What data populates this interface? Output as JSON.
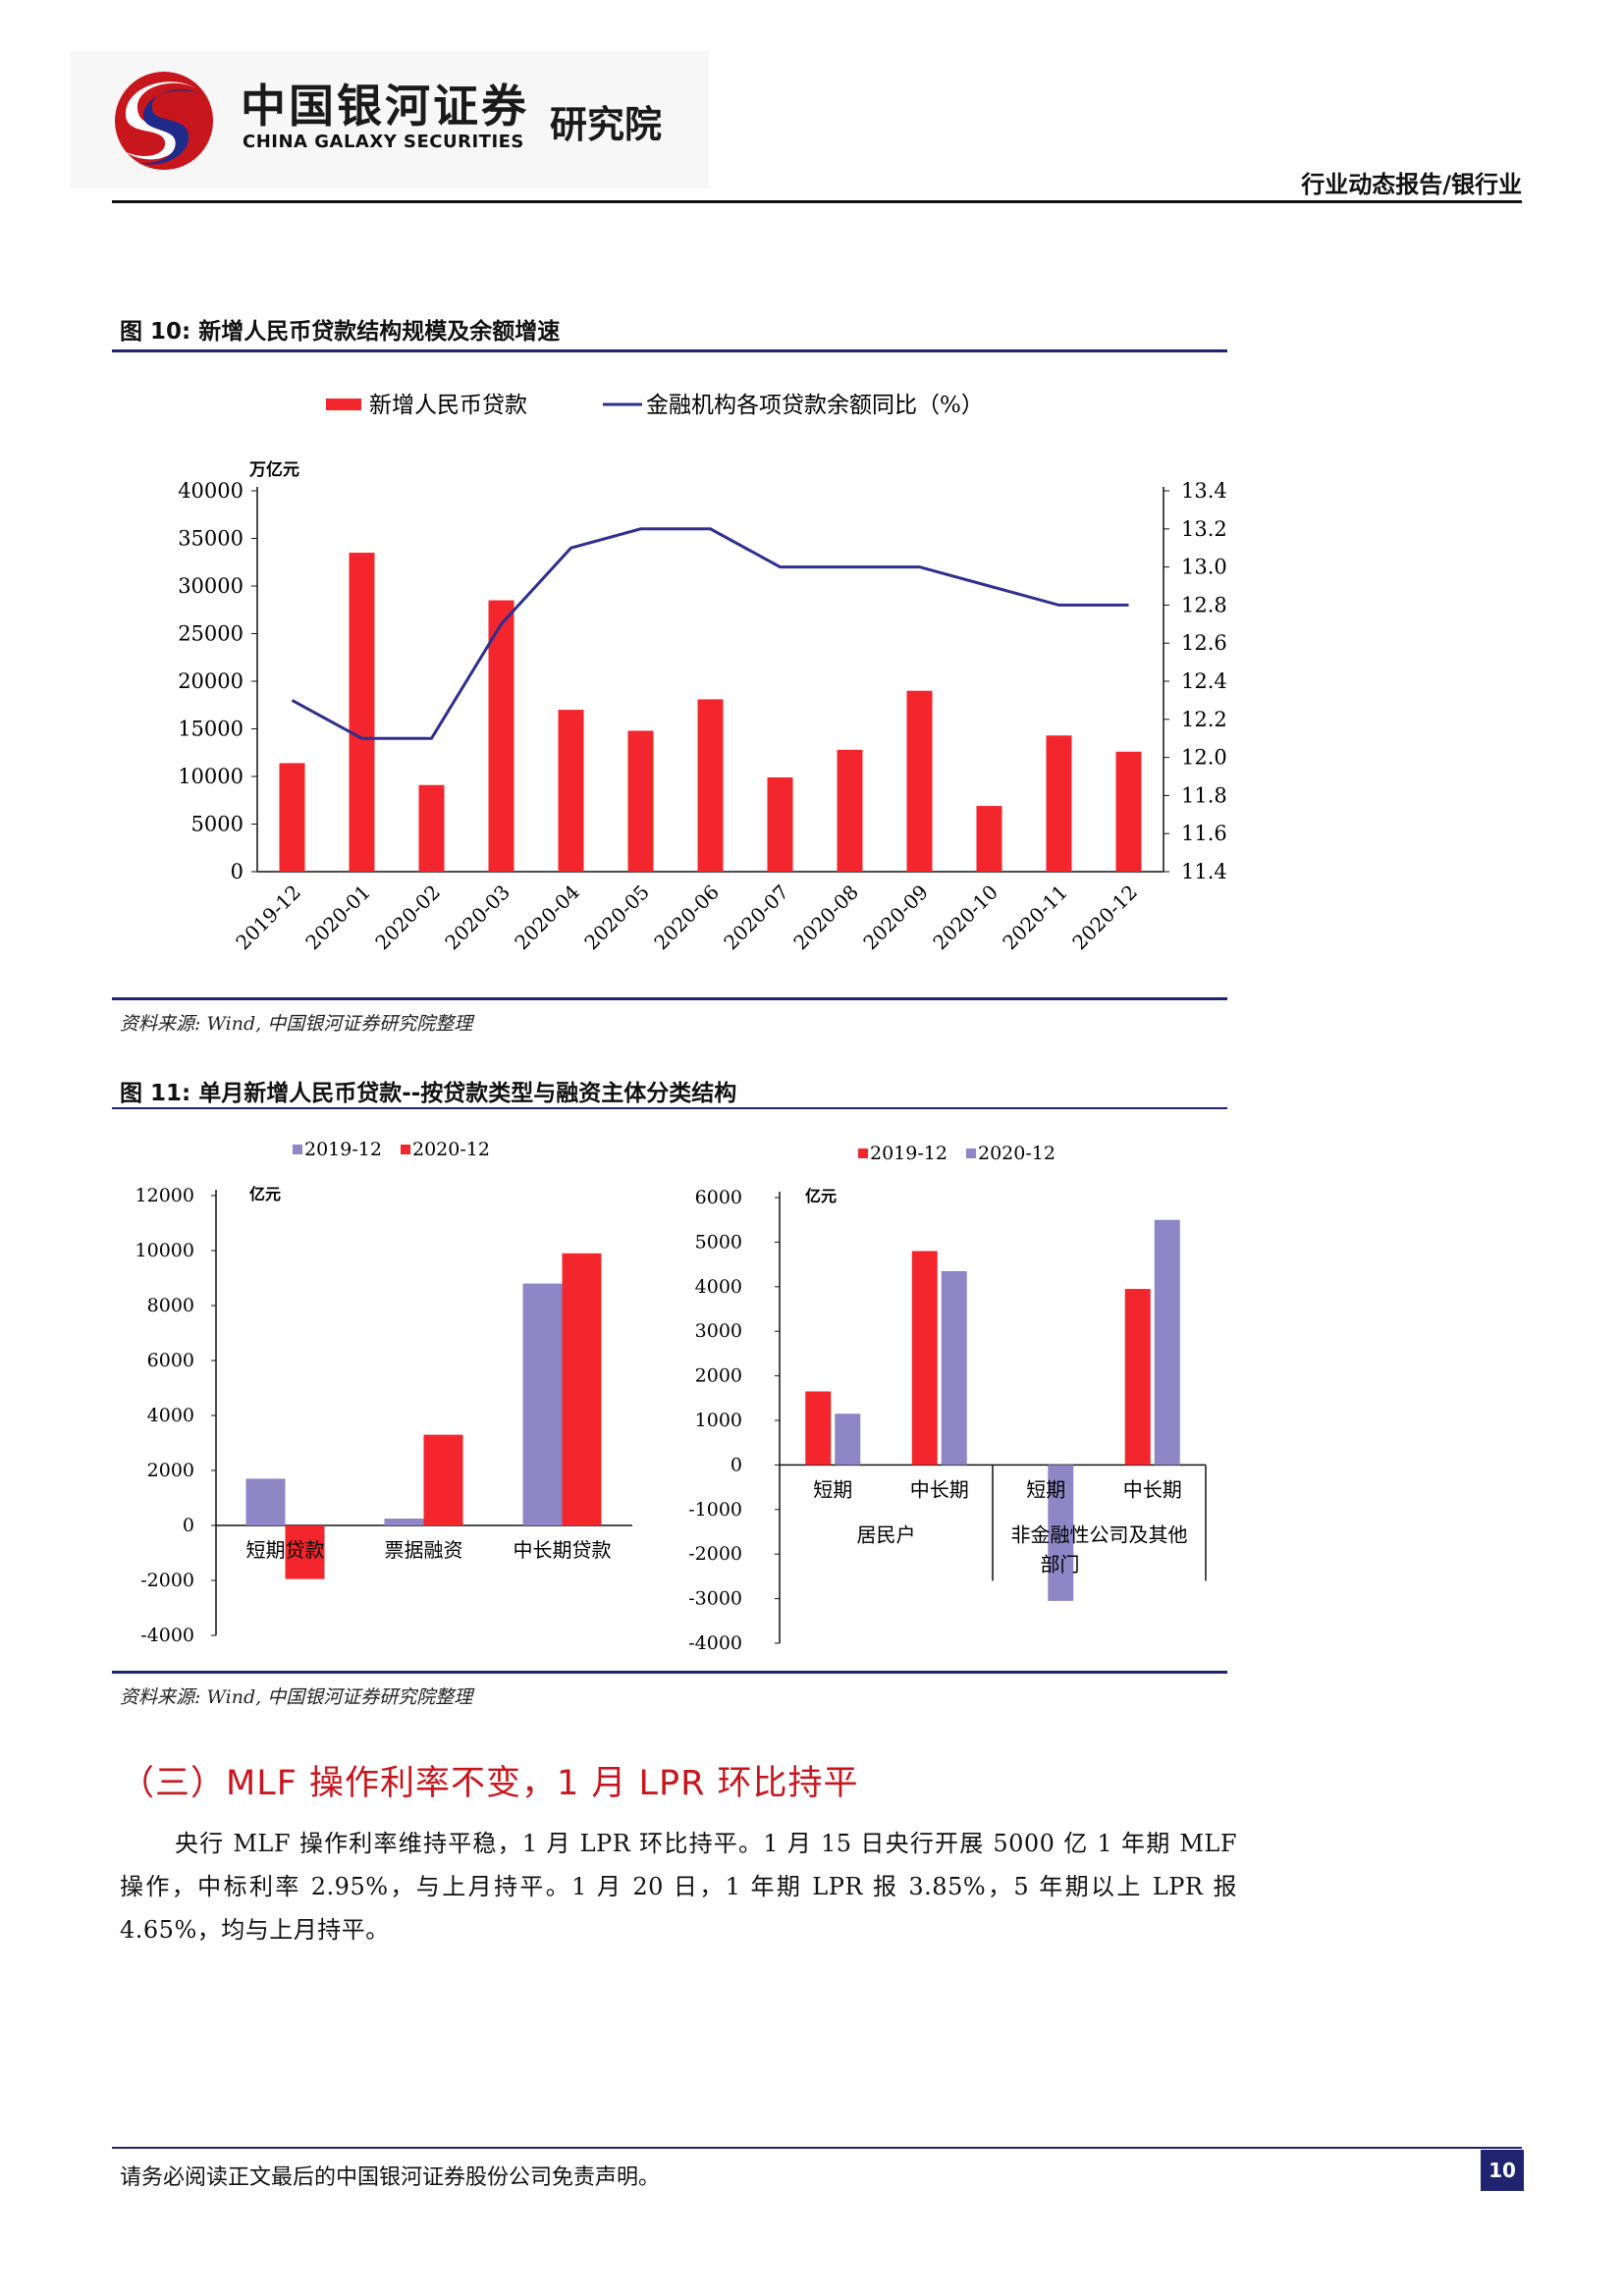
{
  "header": {
    "brand_cn": "中国银河证券",
    "brand_en": "CHINA GALAXY SECURITIES",
    "institute": "研究院",
    "category": "行业动态报告/银行业"
  },
  "figure10": {
    "title": "图 10: 新增人民币贷款结构规模及余额增速",
    "source": "资料来源: Wind, 中国银河证券研究院整理"
  },
  "figure11": {
    "title": "图 11: 单月新增人民币贷款--按贷款类型与融资主体分类结构",
    "source": "资料来源: Wind, 中国银河证券研究院整理"
  },
  "chart_data": [
    {
      "type": "bar+line",
      "title": "",
      "unit_label": "万亿元",
      "categories": [
        "2019-12",
        "2020-01",
        "2020-02",
        "2020-03",
        "2020-04",
        "2020-05",
        "2020-06",
        "2020-07",
        "2020-08",
        "2020-09",
        "2020-10",
        "2020-11",
        "2020-12"
      ],
      "series": [
        {
          "name": "新增人民币贷款",
          "kind": "bar",
          "axis": "left",
          "color": "#f2262c",
          "values": [
            11400,
            33500,
            9100,
            28500,
            17000,
            14800,
            18100,
            9900,
            12800,
            19000,
            6900,
            14300,
            12600
          ]
        },
        {
          "name": "金融机构各项贷款余额同比（%）",
          "kind": "line",
          "axis": "right",
          "color": "#2e2f8f",
          "values": [
            12.3,
            12.1,
            12.1,
            12.7,
            13.1,
            13.2,
            13.2,
            13.0,
            13.0,
            13.0,
            12.9,
            12.8,
            12.8
          ]
        }
      ],
      "y_left": {
        "min": 0,
        "max": 40000,
        "ticks": [
          "0",
          "5000",
          "10000",
          "15000",
          "20000",
          "25000",
          "30000",
          "35000",
          "40000"
        ]
      },
      "y_right": {
        "min": 11.4,
        "max": 13.4,
        "ticks": [
          "11.4",
          "11.6",
          "11.8",
          "12.0",
          "12.2",
          "12.4",
          "12.6",
          "12.8",
          "13.0",
          "13.2",
          "13.4"
        ]
      },
      "legend": "top",
      "grid": false
    },
    {
      "type": "bar",
      "unit_label": "亿元",
      "categories": [
        "短期贷款",
        "票据融资",
        "中长期贷款"
      ],
      "series": [
        {
          "name": "2019-12",
          "color": "#8f86c6",
          "values": [
            1700,
            250,
            8800
          ]
        },
        {
          "name": "2020-12",
          "color": "#f2262c",
          "values": [
            -1950,
            3300,
            9900
          ]
        }
      ],
      "y": {
        "min": -4000,
        "max": 12000,
        "ticks": [
          "-4000",
          "-2000",
          "0",
          "2000",
          "4000",
          "6000",
          "8000",
          "10000",
          "12000"
        ]
      },
      "legend": "top",
      "grid": false
    },
    {
      "type": "bar",
      "unit_label": "亿元",
      "categories": [
        "短期",
        "中长期",
        "短期",
        "中长期"
      ],
      "groups": [
        "居民户",
        "非金融性公司及其他部门"
      ],
      "series": [
        {
          "name": "2019-12",
          "color": "#f2262c",
          "values": [
            1650,
            4800,
            0,
            3950
          ]
        },
        {
          "name": "2020-12",
          "color": "#8f86c6",
          "values": [
            1150,
            4350,
            -3050,
            5500
          ]
        }
      ],
      "y": {
        "min": -4000,
        "max": 6000,
        "ticks": [
          "-4000",
          "-3000",
          "-2000",
          "-1000",
          "0",
          "1000",
          "2000",
          "3000",
          "4000",
          "5000",
          "6000"
        ]
      },
      "legend": "top",
      "grid": false
    }
  ],
  "section": {
    "heading": "（三）MLF 操作利率不变，1 月 LPR 环比持平",
    "paragraph": "央行 MLF 操作利率维持平稳，1 月 LPR 环比持平。1 月 15 日央行开展 5000 亿 1 年期 MLF 操作，中标利率 2.95%，与上月持平。1 月 20 日，1 年期 LPR 报 3.85%，5 年期以上 LPR 报 4.65%，均与上月持平。"
  },
  "footer": {
    "disclaimer": "请务必阅读正文最后的中国银河证券股份公司免责声明。",
    "page": "10"
  }
}
